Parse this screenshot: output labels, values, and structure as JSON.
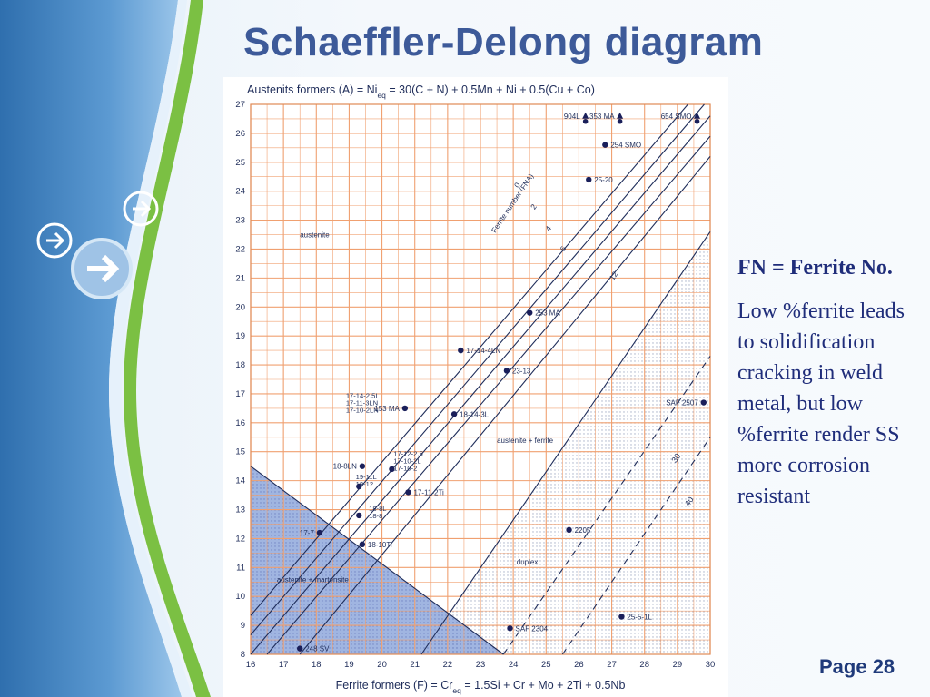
{
  "slide": {
    "title": "Schaeffler-Delong diagram",
    "page": "Page 28",
    "fn_heading": "FN = Ferrite No.",
    "note": "Low %ferrite leads to solidification cracking in weld metal, but low %ferrite render SS more corrosion resistant",
    "accent_color": "#3d5a99",
    "nav_icons": [
      "arrow-right-icon",
      "arrow-right-icon",
      "arrow-right-icon"
    ]
  },
  "chart_data": {
    "type": "scatter",
    "ylabel": "Austenits formers (A) = Ni",
    "ylabel_sub": "eq",
    "ylabel_rest": " = 30(C + N) + 0.5Mn + Ni + 0.5(Cu + Co)",
    "xlabel": "Ferrite formers (F) = Cr",
    "xlabel_sub": "eq",
    "xlabel_rest": " = 1.5Si + Cr + Mo + 2Ti + 0.5Nb",
    "xlim": [
      16,
      30
    ],
    "ylim": [
      8,
      27
    ],
    "xticks": [
      "16",
      "17",
      "18",
      "19",
      "20",
      "21",
      "22",
      "23",
      "24",
      "25",
      "26",
      "27",
      "28",
      "29",
      "30"
    ],
    "yticks": [
      "8",
      "9",
      "10",
      "11",
      "12",
      "13",
      "14",
      "15",
      "16",
      "17",
      "18",
      "19",
      "20",
      "21",
      "22",
      "23",
      "24",
      "25",
      "26",
      "27"
    ],
    "grid": true,
    "grid_color": "#f0a070",
    "region_labels": [
      {
        "text": "austenite",
        "x": 17.5,
        "y": 22.4
      },
      {
        "text": "austenite + ferrite",
        "x": 23.5,
        "y": 15.3
      },
      {
        "text": "duplex",
        "x": 24.1,
        "y": 11.1
      },
      {
        "text": "austenite + martensite",
        "x": 16.8,
        "y": 10.5
      }
    ],
    "fn_lines": [
      {
        "label": "0",
        "x1": 16,
        "y1": 9.34,
        "x2": 29.32,
        "y2": 27
      },
      {
        "label": "2",
        "x1": 16,
        "y1": 8.67,
        "x2": 29.82,
        "y2": 27
      },
      {
        "label": "4",
        "x1": 16,
        "y1": 8.0,
        "x2": 30,
        "y2": 26.6
      },
      {
        "label": "6",
        "x1": 16.5,
        "y1": 8.0,
        "x2": 30,
        "y2": 25.9
      },
      {
        "label": "12",
        "x1": 17.5,
        "y1": 8.0,
        "x2": 30,
        "y2": 25.2
      }
    ],
    "fn_axis_title": "Ferrite number (FNA)",
    "dashed_lines": [
      {
        "label": "30",
        "x1": 23.7,
        "y1": 8.0,
        "x2": 30,
        "y2": 18.3
      },
      {
        "label": "40",
        "x1": 25.5,
        "y1": 8.0,
        "x2": 30,
        "y2": 15.5
      }
    ],
    "points": [
      {
        "label": "904L",
        "x": 26.2,
        "y": 26.6,
        "marker": "triangle"
      },
      {
        "label": "353 MA",
        "x": 27.25,
        "y": 26.6,
        "marker": "triangle"
      },
      {
        "label": "654 SMO",
        "x": 29.6,
        "y": 26.6,
        "marker": "triangle"
      },
      {
        "label": "254 SMO",
        "x": 26.8,
        "y": 25.6,
        "marker": "dot"
      },
      {
        "label": "25-20",
        "x": 26.3,
        "y": 24.4,
        "marker": "dot"
      },
      {
        "label": "253 MA",
        "x": 24.5,
        "y": 19.8,
        "marker": "dot"
      },
      {
        "label": "17-14-4LN",
        "x": 22.4,
        "y": 18.5,
        "marker": "dot"
      },
      {
        "label": "23-13",
        "x": 23.8,
        "y": 17.8,
        "marker": "dot"
      },
      {
        "label": "153 MA",
        "x": 20.7,
        "y": 16.5,
        "marker": "dot"
      },
      {
        "label": "18-14-3L",
        "x": 22.2,
        "y": 16.3,
        "marker": "dot"
      },
      {
        "label": "SAF 2507",
        "x": 29.8,
        "y": 16.7,
        "marker": "dot"
      },
      {
        "label": "18-8LN",
        "x": 19.4,
        "y": 14.5,
        "marker": "dot"
      },
      {
        "label": "17-12-2.5",
        "x": 20.3,
        "y": 14.4,
        "marker": "dot"
      },
      {
        "label": "19-11L",
        "x": 19.3,
        "y": 13.8,
        "marker": "dot"
      },
      {
        "label": "17-11-2Ti",
        "x": 20.8,
        "y": 13.6,
        "marker": "dot"
      },
      {
        "label": "18-8L",
        "x": 19.3,
        "y": 12.8,
        "marker": "dot"
      },
      {
        "label": "2205",
        "x": 25.7,
        "y": 12.3,
        "marker": "dot"
      },
      {
        "label": "17-7",
        "x": 18.1,
        "y": 12.2,
        "marker": "dot"
      },
      {
        "label": "18-10Ti",
        "x": 19.4,
        "y": 11.8,
        "marker": "dot"
      },
      {
        "label": "25-5-1L",
        "x": 27.3,
        "y": 9.3,
        "marker": "dot"
      },
      {
        "label": "SAF 2304",
        "x": 23.9,
        "y": 8.9,
        "marker": "dot"
      },
      {
        "label": "248 SV",
        "x": 17.5,
        "y": 8.2,
        "marker": "dot"
      }
    ],
    "stacked_labels": [
      {
        "lines": [
          "17-14-2.5L",
          "17-11-3LN",
          "17-10-2LN"
        ],
        "x": 18.9,
        "y": 16.85
      },
      {
        "lines": [
          "17-12-2.5",
          "17-10-2L",
          "17-10-2"
        ],
        "x": 20.35,
        "y": 14.85
      },
      {
        "lines": [
          "19-11L",
          "18-12"
        ],
        "x": 19.2,
        "y": 14.05
      },
      {
        "lines": [
          "18-8L",
          "18-8"
        ],
        "x": 19.6,
        "y": 12.95
      }
    ],
    "martensite_region": [
      [
        16,
        14.5
      ],
      [
        16,
        8
      ],
      [
        23.7,
        8
      ]
    ],
    "ferrite_shade_region": [
      [
        21.2,
        8
      ],
      [
        30,
        8
      ],
      [
        30,
        22.6
      ]
    ]
  }
}
